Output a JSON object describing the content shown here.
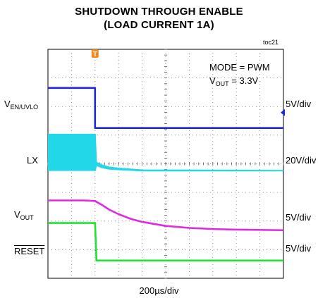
{
  "chart_data": {
    "type": "line",
    "title": "SHUTDOWN THROUGH ENABLE",
    "subtitle": "(LOAD CURRENT 1A)",
    "figure_id": "toc21",
    "xlabel": "200µs/div",
    "grid": true,
    "grid_divisions": {
      "x": 10,
      "y": 8
    },
    "annotations": [
      "MODE = PWM",
      "V",
      "OUT",
      " = 3.3V"
    ],
    "trigger_marker": "T",
    "xlim": [
      0,
      10
    ],
    "ylim": [
      0,
      8
    ],
    "series": [
      {
        "name": "V",
        "name_sub": "EN/UVLO",
        "scale": "5V/div",
        "color": "#1f2ad6",
        "x": [
          0,
          2.0,
          2.0,
          10
        ],
        "y": [
          6.65,
          6.65,
          5.25,
          5.25
        ]
      },
      {
        "name": "LX",
        "scale": "20V/div",
        "color": "#22d8e8",
        "switching_until_x": 2.0,
        "x": [
          0,
          2.0,
          2.05,
          2.3,
          2.6,
          3.0,
          4.0,
          10
        ],
        "y_low": [
          3.75,
          3.75,
          3.95,
          3.87,
          3.82,
          3.8,
          3.76,
          3.76
        ],
        "y_high": [
          5.05,
          5.05,
          4.05,
          3.95,
          3.88,
          3.84,
          3.78,
          3.76
        ]
      },
      {
        "name": "V",
        "name_sub": "OUT",
        "scale": "5V/div",
        "color": "#e02ae0",
        "x": [
          0,
          1.5,
          2.0,
          2.3,
          2.6,
          3.0,
          3.5,
          4.0,
          5.0,
          6.0,
          7.0,
          8.0,
          10
        ],
        "y": [
          2.72,
          2.72,
          2.7,
          2.56,
          2.4,
          2.24,
          2.08,
          1.97,
          1.83,
          1.76,
          1.72,
          1.7,
          1.68
        ]
      },
      {
        "name": "RESET",
        "scale": "5V/div",
        "color": "#22e030",
        "x": [
          0,
          2.0,
          2.06,
          10
        ],
        "y": [
          1.93,
          1.93,
          0.62,
          0.62
        ]
      }
    ]
  }
}
